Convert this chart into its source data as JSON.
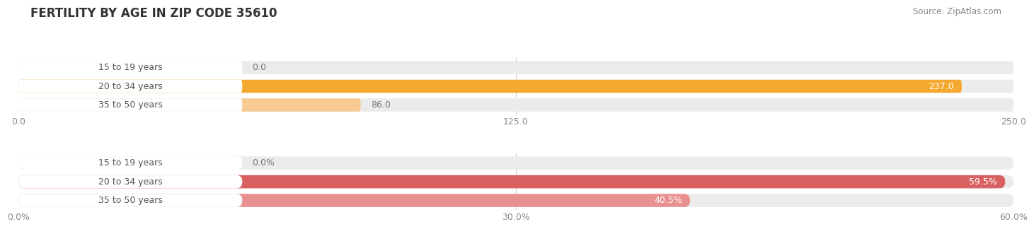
{
  "title": "FERTILITY BY AGE IN ZIP CODE 35610",
  "source": "Source: ZipAtlas.com",
  "top_chart": {
    "categories": [
      "15 to 19 years",
      "20 to 34 years",
      "35 to 50 years"
    ],
    "values": [
      0.0,
      237.0,
      86.0
    ],
    "xlim": [
      0,
      250.0
    ],
    "xticks": [
      0.0,
      125.0,
      250.0
    ],
    "xtick_labels": [
      "0.0",
      "125.0",
      "250.0"
    ],
    "bar_color_full": "#F5A830",
    "bar_color_light": "#F8C990",
    "bar_bg_color": "#EBEBEB",
    "white_pill_color": "#FFFFFF"
  },
  "bottom_chart": {
    "categories": [
      "15 to 19 years",
      "20 to 34 years",
      "35 to 50 years"
    ],
    "values": [
      0.0,
      59.5,
      40.5
    ],
    "xlim": [
      0,
      60.0
    ],
    "xticks": [
      0.0,
      30.0,
      60.0
    ],
    "xtick_labels": [
      "0.0%",
      "30.0%",
      "60.0%"
    ],
    "bar_color_full": "#D96060",
    "bar_color_light": "#E89090",
    "bar_bg_color": "#EBEBEB",
    "white_pill_color": "#FFFFFF"
  },
  "bg_color": "#FFFFFF",
  "title_fontsize": 12,
  "source_fontsize": 8.5,
  "label_fontsize": 9,
  "category_fontsize": 9,
  "tick_fontsize": 9
}
